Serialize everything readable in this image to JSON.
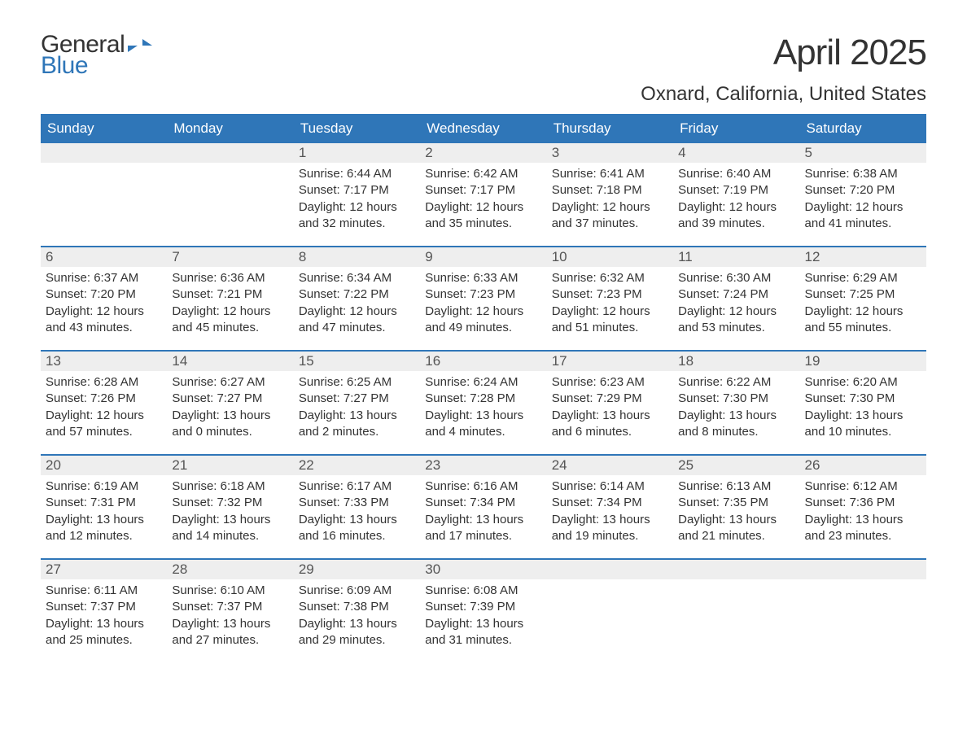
{
  "logo": {
    "text1": "General",
    "text2": "Blue",
    "flag_color": "#2f76b8"
  },
  "title": "April 2025",
  "location": "Oxnard, California, United States",
  "colors": {
    "header_bg": "#2f76b8",
    "header_text": "#ffffff",
    "daynum_bg": "#eeeeee",
    "row_border": "#2f76b8",
    "body_text": "#333333",
    "background": "#ffffff"
  },
  "typography": {
    "title_fontsize": 44,
    "location_fontsize": 24,
    "header_fontsize": 17,
    "daynum_fontsize": 17,
    "body_fontsize": 15,
    "logo_fontsize": 30
  },
  "day_headers": [
    "Sunday",
    "Monday",
    "Tuesday",
    "Wednesday",
    "Thursday",
    "Friday",
    "Saturday"
  ],
  "labels": {
    "sunrise": "Sunrise:",
    "sunset": "Sunset:",
    "daylight": "Daylight:"
  },
  "weeks": [
    [
      {
        "n": "",
        "sunrise": "",
        "sunset": "",
        "daylight": ""
      },
      {
        "n": "",
        "sunrise": "",
        "sunset": "",
        "daylight": ""
      },
      {
        "n": "1",
        "sunrise": "6:44 AM",
        "sunset": "7:17 PM",
        "daylight": "12 hours and 32 minutes."
      },
      {
        "n": "2",
        "sunrise": "6:42 AM",
        "sunset": "7:17 PM",
        "daylight": "12 hours and 35 minutes."
      },
      {
        "n": "3",
        "sunrise": "6:41 AM",
        "sunset": "7:18 PM",
        "daylight": "12 hours and 37 minutes."
      },
      {
        "n": "4",
        "sunrise": "6:40 AM",
        "sunset": "7:19 PM",
        "daylight": "12 hours and 39 minutes."
      },
      {
        "n": "5",
        "sunrise": "6:38 AM",
        "sunset": "7:20 PM",
        "daylight": "12 hours and 41 minutes."
      }
    ],
    [
      {
        "n": "6",
        "sunrise": "6:37 AM",
        "sunset": "7:20 PM",
        "daylight": "12 hours and 43 minutes."
      },
      {
        "n": "7",
        "sunrise": "6:36 AM",
        "sunset": "7:21 PM",
        "daylight": "12 hours and 45 minutes."
      },
      {
        "n": "8",
        "sunrise": "6:34 AM",
        "sunset": "7:22 PM",
        "daylight": "12 hours and 47 minutes."
      },
      {
        "n": "9",
        "sunrise": "6:33 AM",
        "sunset": "7:23 PM",
        "daylight": "12 hours and 49 minutes."
      },
      {
        "n": "10",
        "sunrise": "6:32 AM",
        "sunset": "7:23 PM",
        "daylight": "12 hours and 51 minutes."
      },
      {
        "n": "11",
        "sunrise": "6:30 AM",
        "sunset": "7:24 PM",
        "daylight": "12 hours and 53 minutes."
      },
      {
        "n": "12",
        "sunrise": "6:29 AM",
        "sunset": "7:25 PM",
        "daylight": "12 hours and 55 minutes."
      }
    ],
    [
      {
        "n": "13",
        "sunrise": "6:28 AM",
        "sunset": "7:26 PM",
        "daylight": "12 hours and 57 minutes."
      },
      {
        "n": "14",
        "sunrise": "6:27 AM",
        "sunset": "7:27 PM",
        "daylight": "13 hours and 0 minutes."
      },
      {
        "n": "15",
        "sunrise": "6:25 AM",
        "sunset": "7:27 PM",
        "daylight": "13 hours and 2 minutes."
      },
      {
        "n": "16",
        "sunrise": "6:24 AM",
        "sunset": "7:28 PM",
        "daylight": "13 hours and 4 minutes."
      },
      {
        "n": "17",
        "sunrise": "6:23 AM",
        "sunset": "7:29 PM",
        "daylight": "13 hours and 6 minutes."
      },
      {
        "n": "18",
        "sunrise": "6:22 AM",
        "sunset": "7:30 PM",
        "daylight": "13 hours and 8 minutes."
      },
      {
        "n": "19",
        "sunrise": "6:20 AM",
        "sunset": "7:30 PM",
        "daylight": "13 hours and 10 minutes."
      }
    ],
    [
      {
        "n": "20",
        "sunrise": "6:19 AM",
        "sunset": "7:31 PM",
        "daylight": "13 hours and 12 minutes."
      },
      {
        "n": "21",
        "sunrise": "6:18 AM",
        "sunset": "7:32 PM",
        "daylight": "13 hours and 14 minutes."
      },
      {
        "n": "22",
        "sunrise": "6:17 AM",
        "sunset": "7:33 PM",
        "daylight": "13 hours and 16 minutes."
      },
      {
        "n": "23",
        "sunrise": "6:16 AM",
        "sunset": "7:34 PM",
        "daylight": "13 hours and 17 minutes."
      },
      {
        "n": "24",
        "sunrise": "6:14 AM",
        "sunset": "7:34 PM",
        "daylight": "13 hours and 19 minutes."
      },
      {
        "n": "25",
        "sunrise": "6:13 AM",
        "sunset": "7:35 PM",
        "daylight": "13 hours and 21 minutes."
      },
      {
        "n": "26",
        "sunrise": "6:12 AM",
        "sunset": "7:36 PM",
        "daylight": "13 hours and 23 minutes."
      }
    ],
    [
      {
        "n": "27",
        "sunrise": "6:11 AM",
        "sunset": "7:37 PM",
        "daylight": "13 hours and 25 minutes."
      },
      {
        "n": "28",
        "sunrise": "6:10 AM",
        "sunset": "7:37 PM",
        "daylight": "13 hours and 27 minutes."
      },
      {
        "n": "29",
        "sunrise": "6:09 AM",
        "sunset": "7:38 PM",
        "daylight": "13 hours and 29 minutes."
      },
      {
        "n": "30",
        "sunrise": "6:08 AM",
        "sunset": "7:39 PM",
        "daylight": "13 hours and 31 minutes."
      },
      {
        "n": "",
        "sunrise": "",
        "sunset": "",
        "daylight": ""
      },
      {
        "n": "",
        "sunrise": "",
        "sunset": "",
        "daylight": ""
      },
      {
        "n": "",
        "sunrise": "",
        "sunset": "",
        "daylight": ""
      }
    ]
  ]
}
